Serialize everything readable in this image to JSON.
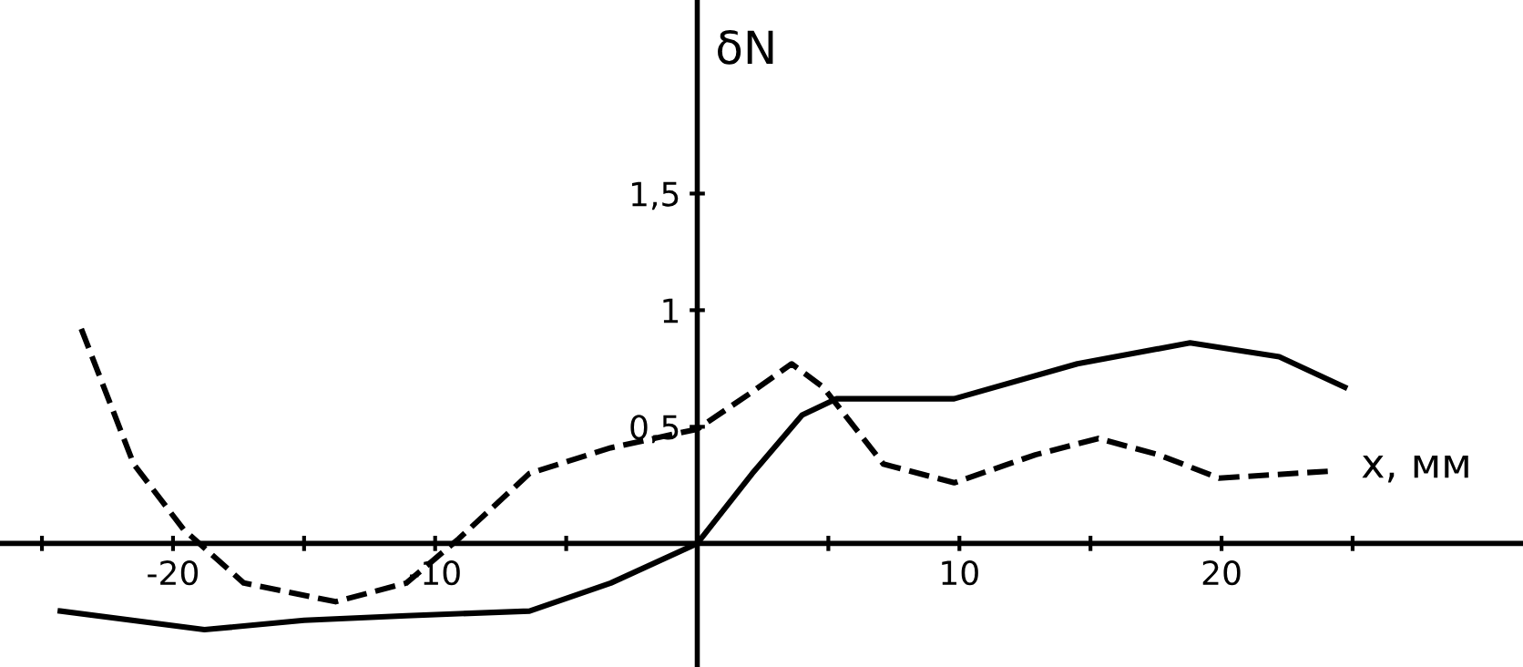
{
  "chart_data": {
    "type": "line",
    "xlabel": "x, мм",
    "ylabel": "δN",
    "xlim": [
      -26.6,
      31.5
    ],
    "ylim": [
      -0.53,
      2.33
    ],
    "xticks": [
      {
        "value": -25,
        "label": null
      },
      {
        "value": -20,
        "label": "-20"
      },
      {
        "value": -15,
        "label": null
      },
      {
        "value": -10,
        "label": "-10"
      },
      {
        "value": -5,
        "label": null
      },
      {
        "value": 5,
        "label": null
      },
      {
        "value": 10,
        "label": "10"
      },
      {
        "value": 15,
        "label": null
      },
      {
        "value": 20,
        "label": "20"
      },
      {
        "value": 25,
        "label": null
      }
    ],
    "yticks": [
      {
        "value": 0.5,
        "label": "0,5"
      },
      {
        "value": 1,
        "label": "1"
      },
      {
        "value": 1.5,
        "label": "1,5"
      }
    ],
    "grid": false,
    "legend": false,
    "series": [
      {
        "color": "#000000",
        "line_style": "solid",
        "x": [
          -24.3,
          -18.8,
          -15,
          -11.1,
          -6.4,
          -3.3,
          0,
          2.1,
          4,
          5.3,
          9.8,
          14.5,
          18.8,
          22.2,
          24.7
        ],
        "values": [
          -0.29,
          -0.37,
          -0.33,
          -0.31,
          -0.29,
          -0.17,
          0,
          0.3,
          0.55,
          0.62,
          0.62,
          0.77,
          0.86,
          0.8,
          0.67
        ]
      },
      {
        "color": "#000000",
        "line_style": "dashed",
        "x": [
          -23.5,
          -21.5,
          -19.6,
          -17.3,
          -13.8,
          -11.1,
          -9.1,
          -6.4,
          -3.3,
          0,
          2.1,
          3.6,
          4.8,
          7.1,
          9.8,
          12.9,
          15.3,
          17.6,
          19.9,
          24.2
        ],
        "values": [
          0.92,
          0.34,
          0.06,
          -0.17,
          -0.25,
          -0.17,
          0.02,
          0.3,
          0.41,
          0.49,
          0.65,
          0.77,
          0.67,
          0.34,
          0.26,
          0.38,
          0.45,
          0.38,
          0.28,
          0.31
        ]
      }
    ]
  }
}
